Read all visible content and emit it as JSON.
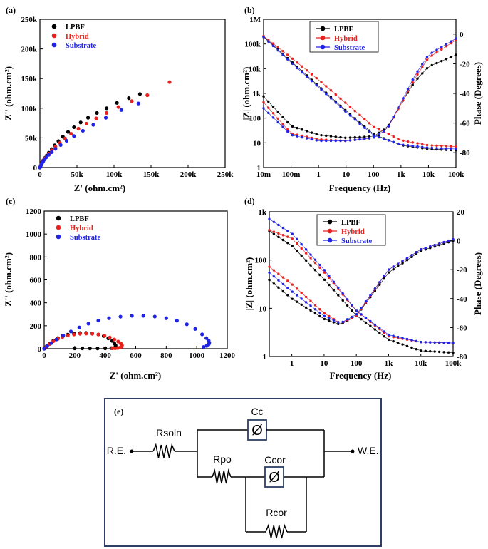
{
  "colors": {
    "LPBF": "#000000",
    "Hybrid": "#e8211f",
    "Substrate": "#1f23e6"
  },
  "chart_data": [
    {
      "id": "a",
      "panel_label": "(a)",
      "type": "scatter",
      "xlabel": "Z' (ohm.cm²)",
      "ylabel": "Z'' (ohm.cm²)",
      "xlim": [
        0,
        250000
      ],
      "ylim": [
        0,
        250000
      ],
      "x_ticks": [
        "0",
        "50k",
        "100k",
        "150k",
        "200k",
        "250k"
      ],
      "y_ticks": [
        "0",
        "50k",
        "100k",
        "150k",
        "200k",
        "250k"
      ],
      "legend": [
        "LPBF",
        "Hybrid",
        "Substrate"
      ],
      "series": [
        {
          "name": "LPBF",
          "x": [
            0,
            1000,
            2000,
            3000,
            4500,
            6500,
            9000,
            12000,
            16000,
            20000,
            25000,
            31000,
            38000,
            46000,
            55000,
            65000,
            77000,
            90000,
            104000,
            120000,
            135000
          ],
          "y": [
            0,
            3000,
            6000,
            9000,
            12000,
            16000,
            20000,
            25000,
            31000,
            37500,
            44500,
            52000,
            60000,
            68000,
            76000,
            84000,
            92000,
            100000,
            109000,
            117000,
            124000
          ]
        },
        {
          "name": "Hybrid",
          "x": [
            0,
            1000,
            2000,
            3000,
            4500,
            6500,
            9000,
            12000,
            16000,
            21000,
            27000,
            34000,
            42000,
            52000,
            63000,
            76000,
            90000,
            106000,
            124000,
            145000,
            175000
          ],
          "y": [
            0,
            2800,
            5500,
            8500,
            11500,
            15000,
            19000,
            23500,
            29000,
            35000,
            41500,
            49000,
            57000,
            65500,
            74000,
            83000,
            92000,
            102000,
            112000,
            122000,
            144000
          ]
        },
        {
          "name": "Substrate",
          "x": [
            0,
            1000,
            2000,
            3000,
            4500,
            6500,
            9000,
            12000,
            16000,
            21000,
            28000,
            36000,
            46000,
            58000,
            72000,
            89000,
            110000,
            133000
          ],
          "y": [
            0,
            2500,
            5000,
            7500,
            10500,
            14000,
            17500,
            21500,
            26000,
            31500,
            38000,
            45000,
            53000,
            62000,
            72000,
            84000,
            97000,
            108000
          ]
        }
      ]
    },
    {
      "id": "b",
      "panel_label": "(b)",
      "type": "line",
      "xlabel": "Frequency (Hz)",
      "ylabel": "|Z| (ohm.cm²)",
      "y2label": "Phase (Degrees)",
      "xlog": [
        0.01,
        100000
      ],
      "ylog": [
        1,
        1000000
      ],
      "y2lim": [
        -90,
        10
      ],
      "x_ticks": [
        "10m",
        "100m",
        "1",
        "10",
        "100",
        "1k",
        "10k",
        "100k"
      ],
      "y_ticks": [
        "1",
        "10",
        "100",
        "1k",
        "10k",
        "100k",
        "1M"
      ],
      "y2_ticks": [
        "0",
        "-20",
        "-40",
        "-60",
        "-80"
      ],
      "legend": [
        "LPBF",
        "Hybrid",
        "Substrate"
      ],
      "series": [
        {
          "name": "LPBF",
          "magnitude": {
            "logf": [
              -2,
              -1,
              0,
              1,
              2,
              3,
              4,
              5
            ],
            "logz": [
              5.3,
              4.3,
              3.3,
              2.3,
              1.35,
              0.9,
              0.75,
              0.7
            ]
          },
          "phase": {
            "logf": [
              -2,
              -1,
              0,
              1,
              2,
              2.5,
              3,
              3.5,
              4,
              5
            ],
            "deg": [
              -42,
              -62,
              -68,
              -70,
              -69,
              -63,
              -47,
              -32,
              -22,
              -14
            ]
          }
        },
        {
          "name": "Hybrid",
          "magnitude": {
            "logf": [
              -2,
              -1,
              0,
              1,
              2,
              3,
              4,
              5
            ],
            "logz": [
              5.32,
              4.45,
              3.55,
              2.6,
              1.65,
              1.1,
              0.9,
              0.85
            ]
          },
          "phase": {
            "logf": [
              -2,
              -1,
              0,
              1,
              2,
              2.5,
              3,
              3.5,
              4,
              5
            ],
            "deg": [
              -46,
              -67,
              -71,
              -72,
              -70,
              -64,
              -47,
              -30,
              -16,
              -4
            ]
          }
        },
        {
          "name": "Substrate",
          "magnitude": {
            "logf": [
              -2,
              -1,
              0,
              1,
              2,
              3,
              4,
              5
            ],
            "logz": [
              5.28,
              4.25,
              3.25,
              2.25,
              1.3,
              0.93,
              0.8,
              0.75
            ]
          },
          "phase": {
            "logf": [
              -2,
              -1,
              0,
              1,
              2,
              2.5,
              3,
              3.5,
              4,
              5
            ],
            "deg": [
              -50,
              -68,
              -72,
              -72,
              -70,
              -64,
              -46,
              -28,
              -14,
              -3
            ]
          }
        }
      ]
    },
    {
      "id": "c",
      "panel_label": "(c)",
      "type": "scatter",
      "xlabel": "Z' (ohm.cm²)",
      "ylabel": "Z'' (ohm.cm²)",
      "xlim": [
        0,
        1200
      ],
      "ylim": [
        0,
        1200
      ],
      "x_ticks": [
        "0",
        "200",
        "400",
        "600",
        "800",
        "1000",
        "1200"
      ],
      "y_ticks": [
        "0",
        "200",
        "400",
        "600",
        "800",
        "1000",
        "1200"
      ],
      "legend": [
        "LPBF",
        "Hybrid",
        "Substrate"
      ],
      "series": [
        {
          "name": "LPBF",
          "x": [
            0,
            15,
            35,
            60,
            90,
            120,
            155,
            195,
            235,
            275,
            315,
            355,
            390,
            420,
            445,
            460,
            468,
            470,
            462,
            440,
            400,
            350,
            300,
            250,
            200
          ],
          "y": [
            0,
            20,
            45,
            70,
            93,
            110,
            123,
            132,
            136,
            137,
            133,
            124,
            110,
            90,
            68,
            45,
            28,
            15,
            8,
            5,
            3,
            2,
            2,
            3,
            3
          ]
        },
        {
          "name": "Hybrid",
          "x": [
            0,
            15,
            35,
            60,
            90,
            120,
            155,
            195,
            235,
            275,
            315,
            355,
            395,
            430,
            460,
            485,
            502,
            510,
            508,
            498,
            482,
            465,
            448
          ],
          "y": [
            0,
            18,
            40,
            65,
            86,
            102,
            115,
            124,
            130,
            132,
            130,
            124,
            112,
            97,
            80,
            62,
            45,
            30,
            18,
            10,
            6,
            4,
            4
          ]
        },
        {
          "name": "Substrate",
          "x": [
            0,
            20,
            45,
            80,
            125,
            175,
            230,
            290,
            355,
            425,
            500,
            575,
            650,
            725,
            800,
            870,
            935,
            990,
            1035,
            1063,
            1078,
            1082,
            1078,
            1065,
            1045
          ],
          "y": [
            0,
            22,
            48,
            80,
            114,
            150,
            185,
            218,
            245,
            266,
            279,
            287,
            287,
            280,
            266,
            244,
            213,
            172,
            125,
            92,
            70,
            52,
            37,
            25,
            15
          ]
        }
      ]
    },
    {
      "id": "d",
      "panel_label": "(d)",
      "type": "line",
      "xlabel": "Frequency (Hz)",
      "ylabel": "|Z| (ohm.cm²)",
      "y2label": "Phase (Degrees)",
      "xlog": [
        0.2,
        100000
      ],
      "ylog": [
        1,
        1000
      ],
      "y2lim": [
        -80,
        20
      ],
      "x_ticks": [
        "1",
        "10",
        "100",
        "1k",
        "10k",
        "100k"
      ],
      "y_ticks": [
        "1",
        "10",
        "100",
        "1k"
      ],
      "y2_ticks": [
        "20",
        "0",
        "-20",
        "-40",
        "-60",
        "-80"
      ],
      "legend": [
        "LPBF",
        "Hybrid",
        "Substrate"
      ],
      "series": [
        {
          "name": "LPBF",
          "magnitude": {
            "logf": [
              -0.7,
              0,
              1,
              2,
              3,
              4,
              5
            ],
            "logz": [
              2.6,
              2.3,
              1.6,
              0.85,
              0.35,
              0.12,
              0.08
            ]
          },
          "phase": {
            "logf": [
              -0.7,
              0,
              1,
              1.5,
              2,
              3,
              4,
              5
            ],
            "deg": [
              -27,
              -40,
              -54,
              -58,
              -52,
              -22,
              -7,
              0
            ]
          }
        },
        {
          "name": "Hybrid",
          "magnitude": {
            "logf": [
              -0.7,
              0,
              1,
              2,
              3,
              4,
              5
            ],
            "logz": [
              2.62,
              2.45,
              1.75,
              0.95,
              0.42,
              0.3,
              0.28
            ]
          },
          "phase": {
            "logf": [
              -0.7,
              0,
              1,
              1.5,
              2,
              3,
              4,
              5
            ],
            "deg": [
              -18,
              -30,
              -50,
              -57,
              -52,
              -20,
              -6,
              1
            ]
          }
        },
        {
          "name": "Substrate",
          "magnitude": {
            "logf": [
              -0.7,
              0,
              1,
              2,
              3,
              4,
              5
            ],
            "logz": [
              2.85,
              2.55,
              1.8,
              0.95,
              0.45,
              0.3,
              0.28
            ]
          },
          "phase": {
            "logf": [
              -0.7,
              0,
              1,
              1.5,
              2,
              3,
              4,
              5
            ],
            "deg": [
              -22,
              -35,
              -52,
              -57,
              -51,
              -20,
              -6,
              1
            ]
          }
        }
      ]
    }
  ],
  "circuit": {
    "panel_label": "(e)",
    "re_label": "R.E.",
    "we_label": "W.E.",
    "rsoln": "Rsoln",
    "cc": "Cc",
    "rpo": "Rpo",
    "ccor": "Ccor",
    "rcor": "Rcor",
    "cpe_symbol": "Ø"
  }
}
